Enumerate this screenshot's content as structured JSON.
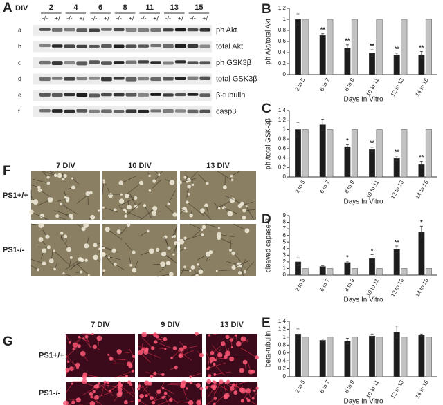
{
  "blot": {
    "panel": "A",
    "header": "DIV",
    "days": [
      "2",
      "4",
      "6",
      "8",
      "11",
      "13",
      "15"
    ],
    "genotypes": [
      "-/-",
      "+/"
    ],
    "rows": [
      {
        "letter": "a",
        "label": "ph Akt"
      },
      {
        "letter": "b",
        "label": "total Akt"
      },
      {
        "letter": "c",
        "label": "ph GSK3β"
      },
      {
        "letter": "d",
        "label": "total GSK3β"
      },
      {
        "letter": "e",
        "label": "β-tubulin"
      },
      {
        "letter": "f",
        "label": "casp3"
      }
    ]
  },
  "phase": {
    "panel": "F",
    "columns": [
      "7 DIV",
      "10 DIV",
      "13 DIV"
    ],
    "rows": [
      "PS1+/+",
      "PS1-/-"
    ]
  },
  "fluor": {
    "panel": "G",
    "columns": [
      "7 DIV",
      "9 DIV",
      "13 DIV"
    ],
    "rows": [
      "PS1+/+",
      "PS1-/-"
    ]
  },
  "chart_data": [
    {
      "type": "bar",
      "panel": "B",
      "ylabel": "ph Akt/total Akt",
      "xlabel": "Days In Vitro",
      "categories": [
        "2 to 5",
        "6 to 7",
        "8 to 9",
        "10 to 11",
        "12 to 13",
        "14 to 15"
      ],
      "series": [
        {
          "color": "#1c1c1c",
          "values": [
            1.0,
            0.71,
            0.48,
            0.39,
            0.36,
            0.36
          ],
          "errors": [
            0.1,
            0.03,
            0.06,
            0.06,
            0.03,
            0.06
          ],
          "annotations": [
            null,
            "**",
            "**",
            "**",
            "**",
            "**"
          ]
        },
        {
          "color": "#c2c2c2",
          "values": [
            1,
            1,
            1,
            1,
            1,
            1
          ]
        }
      ],
      "ylim": [
        0,
        1.2
      ],
      "yticks": [
        0,
        0.2,
        0.4,
        0.6,
        0.8,
        1,
        1.2
      ]
    },
    {
      "type": "bar",
      "panel": "C",
      "ylabel": "ph /total GSK-3β",
      "xlabel": "Days In Vitro",
      "categories": [
        "2 to 5",
        "6 to 7",
        "8 to 9",
        "10 to 11",
        "12 to 13",
        "14 to 15"
      ],
      "series": [
        {
          "color": "#1c1c1c",
          "values": [
            1.0,
            1.1,
            0.64,
            0.58,
            0.39,
            0.26
          ],
          "errors": [
            0.15,
            0.12,
            0.04,
            0.05,
            0.05,
            0.07
          ],
          "annotations": [
            null,
            null,
            "*",
            "**",
            "**",
            "**"
          ]
        },
        {
          "color": "#c2c2c2",
          "values": [
            1,
            1,
            1,
            1,
            1,
            1
          ]
        }
      ],
      "ylim": [
        0,
        1.4
      ],
      "yticks": [
        0,
        0.2,
        0.4,
        0.6,
        0.8,
        1,
        1.2,
        1.4
      ]
    },
    {
      "type": "bar",
      "panel": "D",
      "ylabel": "cleaved capase-3",
      "xlabel": "Days In Vitro",
      "categories": [
        "2 to 5",
        "6 to 7",
        "8 to 9",
        "10 to 11",
        "12 to 13",
        "14 to 15"
      ],
      "series": [
        {
          "color": "#1c1c1c",
          "values": [
            2.0,
            1.3,
            1.9,
            2.5,
            3.9,
            6.5
          ],
          "errors": [
            0.6,
            0.1,
            0.2,
            0.6,
            0.5,
            0.9
          ],
          "annotations": [
            null,
            null,
            "*",
            "*",
            "**",
            "*"
          ]
        },
        {
          "color": "#c2c2c2",
          "values": [
            1,
            1,
            1,
            1,
            1,
            1
          ]
        }
      ],
      "ylim": [
        0,
        9
      ],
      "yticks": [
        0,
        1,
        2,
        3,
        4,
        5,
        6,
        7,
        8,
        9
      ]
    },
    {
      "type": "bar",
      "panel": "E",
      "ylabel": "beta-tubulin",
      "xlabel": "Days In Vitro",
      "categories": [
        "2 to 5",
        "6 to 7",
        "8 to 9",
        "10 to 11",
        "12 to 13",
        "14 to 15"
      ],
      "series": [
        {
          "color": "#1c1c1c",
          "values": [
            1.08,
            0.92,
            0.9,
            1.03,
            1.13,
            1.05
          ],
          "errors": [
            0.13,
            0.03,
            0.07,
            0.05,
            0.15,
            0.03
          ]
        },
        {
          "color": "#c2c2c2",
          "values": [
            1,
            1,
            1,
            1,
            1,
            1
          ]
        }
      ],
      "ylim": [
        0,
        1.4
      ],
      "yticks": [
        0,
        0.2,
        0.4,
        0.6,
        0.8,
        1,
        1.2,
        1.4
      ]
    }
  ]
}
